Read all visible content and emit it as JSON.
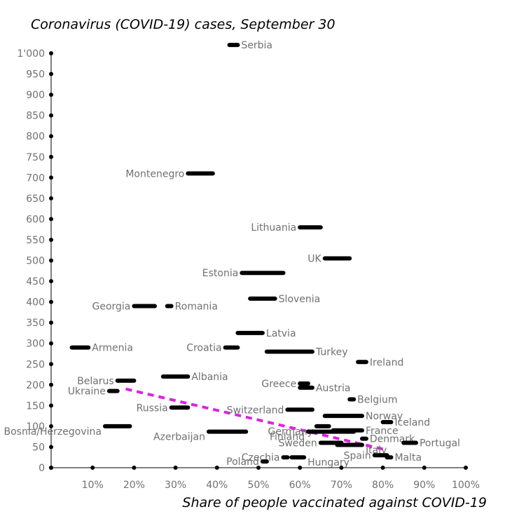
{
  "chart_data": {
    "type": "scatter",
    "title": "Coronavirus (COVID-19) cases, September 30",
    "xlabel": "Share of people vaccinated against COVID-19",
    "ylabel": "",
    "xlim": [
      0,
      100
    ],
    "ylim": [
      0,
      1000
    ],
    "x_ticks": [
      10,
      20,
      30,
      40,
      50,
      60,
      70,
      80,
      90,
      100
    ],
    "x_tick_labels": [
      "10%",
      "20%",
      "30%",
      "40%",
      "50%",
      "60%",
      "70%",
      "80%",
      "90%",
      "100%"
    ],
    "y_ticks": [
      0,
      50,
      100,
      150,
      200,
      250,
      300,
      350,
      400,
      450,
      500,
      550,
      600,
      650,
      700,
      750,
      800,
      850,
      900,
      950,
      1000
    ],
    "y_tick_labels": [
      "0",
      "50",
      "100",
      "150",
      "200",
      "250",
      "300",
      "350",
      "400",
      "450",
      "500",
      "550",
      "600",
      "650",
      "700",
      "750",
      "800",
      "850",
      "900",
      "950",
      "1'000"
    ],
    "grid": false,
    "colors": {
      "points": "#000000",
      "trendline": "#e020e0",
      "labels": "#707070",
      "axis": "#000000"
    },
    "points": [
      {
        "label": "Serbia",
        "x": [
          43,
          45
        ],
        "y": 1020
      },
      {
        "label": "Montenegro",
        "x": [
          33,
          39
        ],
        "y": 710
      },
      {
        "label": "Lithuania",
        "x": [
          60,
          65
        ],
        "y": 580
      },
      {
        "label": "UK",
        "x": [
          66,
          72
        ],
        "y": 505
      },
      {
        "label": "Estonia",
        "x": [
          46,
          56
        ],
        "y": 470
      },
      {
        "label": "Slovenia",
        "x": [
          48,
          54
        ],
        "y": 408
      },
      {
        "label": "Georgia",
        "x": [
          20,
          25
        ],
        "y": 390
      },
      {
        "label": "Romania",
        "x": [
          28,
          29
        ],
        "y": 390
      },
      {
        "label": "Latvia",
        "x": [
          45,
          51
        ],
        "y": 325
      },
      {
        "label": "Armenia",
        "x": [
          5,
          9
        ],
        "y": 290
      },
      {
        "label": "Croatia",
        "x": [
          42,
          45
        ],
        "y": 290
      },
      {
        "label": "Turkey",
        "x": [
          52,
          63
        ],
        "y": 280
      },
      {
        "label": "Ireland",
        "x": [
          74,
          76
        ],
        "y": 255
      },
      {
        "label": "Albania",
        "x": [
          27,
          33
        ],
        "y": 220
      },
      {
        "label": "Belarus",
        "x": [
          16,
          20
        ],
        "y": 210
      },
      {
        "label": "Greece",
        "x": [
          60,
          62
        ],
        "y": 203
      },
      {
        "label": "Austria",
        "x": [
          60,
          63
        ],
        "y": 193
      },
      {
        "label": "Ukraine",
        "x": [
          14,
          16
        ],
        "y": 185
      },
      {
        "label": "Belgium",
        "x": [
          72,
          73
        ],
        "y": 165
      },
      {
        "label": "Russia",
        "x": [
          29,
          33
        ],
        "y": 145
      },
      {
        "label": "Switzerland",
        "x": [
          57,
          63
        ],
        "y": 140
      },
      {
        "label": "Norway",
        "x": [
          66,
          75
        ],
        "y": 125
      },
      {
        "label": "Iceland",
        "x": [
          80,
          82
        ],
        "y": 110
      },
      {
        "label": "Bosnia/Herzegovina",
        "x": [
          13,
          19
        ],
        "y": 100
      },
      {
        "label": "Germany",
        "x": [
          64,
          67
        ],
        "y": 100
      },
      {
        "label": "France",
        "x": [
          68,
          75
        ],
        "y": 90
      },
      {
        "label": "Finland",
        "x": [
          62,
          73
        ],
        "y": 87
      },
      {
        "label": "Azerbaijan",
        "x": [
          38,
          47
        ],
        "y": 87
      },
      {
        "label": "Denmark",
        "x": [
          75,
          76
        ],
        "y": 70
      },
      {
        "label": "Portugal",
        "x": [
          85,
          88
        ],
        "y": 60
      },
      {
        "label": "Sweden",
        "x": [
          65,
          70
        ],
        "y": 60
      },
      {
        "label": "Italy",
        "x": [
          69,
          75
        ],
        "y": 55
      },
      {
        "label": "Czechia",
        "x": [
          56,
          57
        ],
        "y": 25
      },
      {
        "label": "Spain",
        "x": [
          78,
          81
        ],
        "y": 30
      },
      {
        "label": "Malta",
        "x": [
          81,
          82
        ],
        "y": 25
      },
      {
        "label": "Hungary",
        "x": [
          58,
          61
        ],
        "y": 25
      },
      {
        "label": "Poland",
        "x": [
          51,
          52
        ],
        "y": 15
      }
    ],
    "trendline": {
      "x": [
        18,
        80
      ],
      "y": [
        190,
        45
      ]
    }
  }
}
